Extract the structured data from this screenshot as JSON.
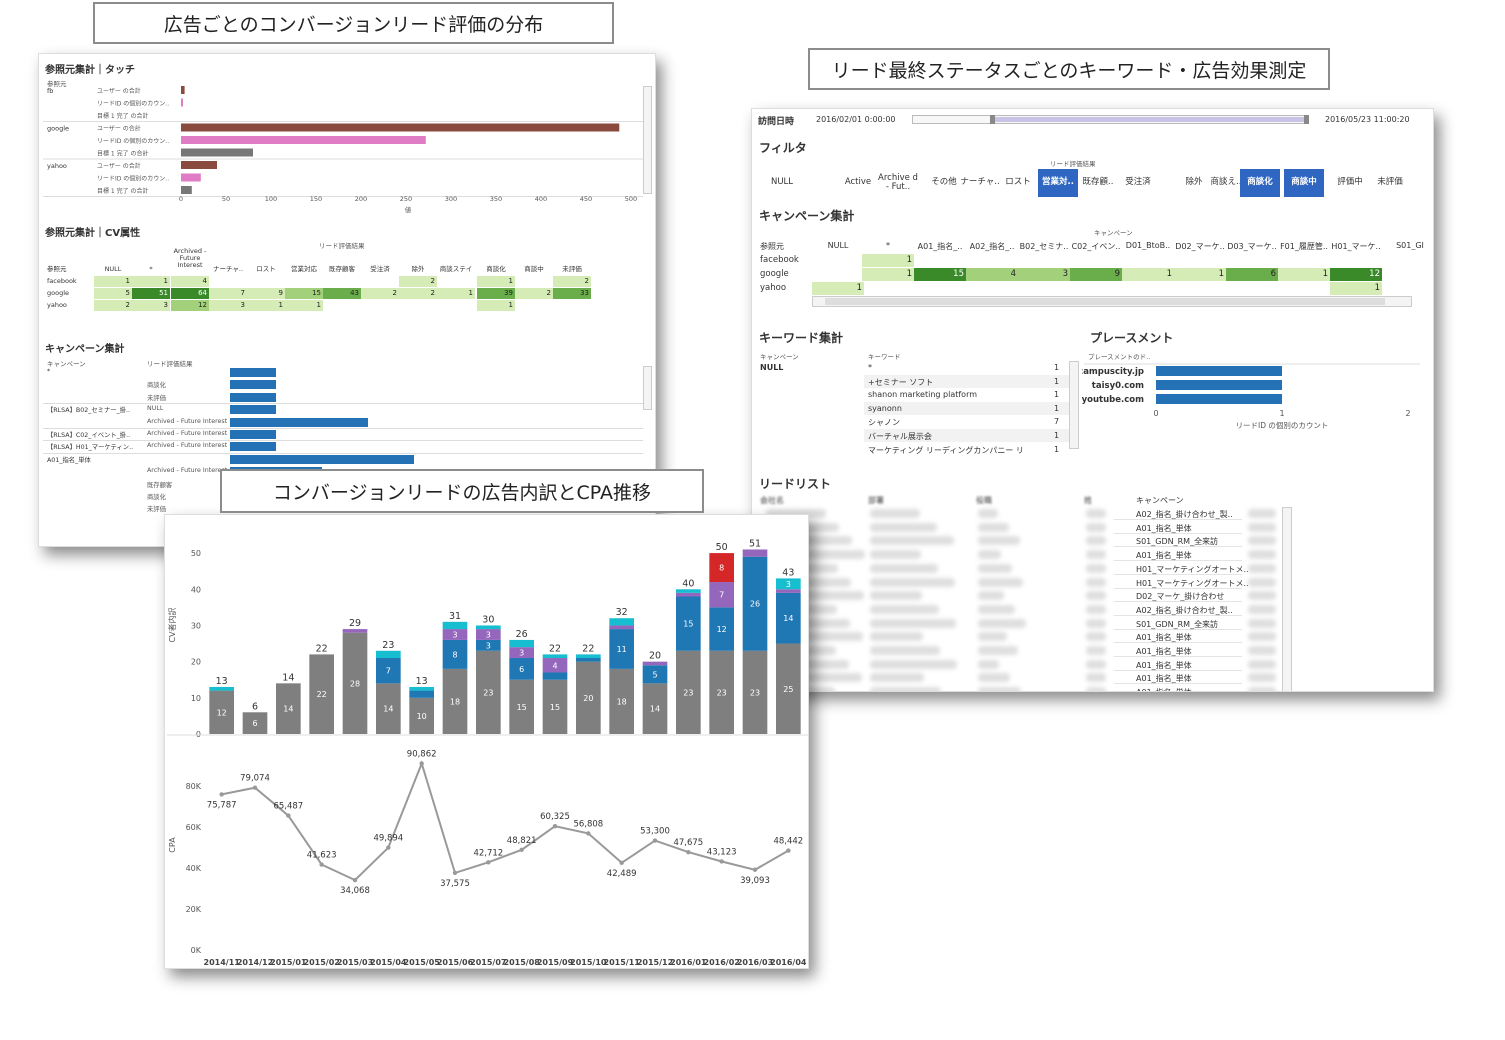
{
  "captions": {
    "dist": "広告ごとのコンバージョンリード評価の分布",
    "keyword": "リード最終ステータスごとのキーワード・広告効果測定",
    "cpa": "コンバージョンリードの広告内訳とCPA推移"
  },
  "left_panel": {
    "touch_title": "参照元集計｜タッチ",
    "ref_header": "参照元",
    "groups": [
      {
        "source": "fb",
        "rows": [
          {
            "label": "ユーザー の合計",
            "value": 4,
            "color": "#8b4a3e"
          },
          {
            "label": "リードID の個別のカウン..",
            "value": 2,
            "color": "#e07bc6"
          },
          {
            "label": "目標 1 完了 の合計",
            "value": 0,
            "color": "#777777"
          }
        ]
      },
      {
        "source": "google",
        "rows": [
          {
            "label": "ユーザー の合計",
            "value": 487,
            "color": "#8b4a3e"
          },
          {
            "label": "リードID の個別のカウン..",
            "value": 272,
            "color": "#e07bc6"
          },
          {
            "label": "目標 1 完了 の合計",
            "value": 80,
            "color": "#777777"
          }
        ]
      },
      {
        "source": "yahoo",
        "rows": [
          {
            "label": "ユーザー の合計",
            "value": 40,
            "color": "#8b4a3e"
          },
          {
            "label": "リードID の個別のカウン..",
            "value": 22,
            "color": "#e07bc6"
          },
          {
            "label": "目標 1 完了 の合計",
            "value": 12,
            "color": "#777777"
          }
        ]
      }
    ],
    "axis_ticks": [
      "0",
      "50",
      "100",
      "150",
      "200",
      "250",
      "300",
      "350",
      "400",
      "450",
      "500"
    ],
    "axis_label": "値",
    "cv_title": "参照元集計｜CV属性",
    "cv_header_caption": "リード評価結果",
    "cv_columns": [
      "参照元",
      "NULL",
      "*",
      "Archived - Future Interest",
      "ナーチャ..",
      "ロスト",
      "営業対応",
      "既存顧客",
      "受注済",
      "除外",
      "商談ステイ",
      "商談化",
      "商談中",
      "未評価"
    ],
    "cv_rows": [
      {
        "source": "facebook",
        "cells": [
          "1",
          "1",
          "4",
          "",
          "",
          "",
          "",
          "",
          "2",
          "",
          "1",
          "",
          "2"
        ]
      },
      {
        "source": "google",
        "cells": [
          "5",
          "51",
          "64",
          "7",
          "9",
          "15",
          "43",
          "2",
          "2",
          "1",
          "39",
          "2",
          "33"
        ]
      },
      {
        "source": "yahoo",
        "cells": [
          "2",
          "3",
          "12",
          "3",
          "1",
          "1",
          "",
          "",
          "",
          "",
          "1",
          "",
          ""
        ]
      }
    ],
    "campaign_title": "キャンペーン集計",
    "campaign_headers": [
      "キャンペーン",
      "リード評価結果"
    ],
    "campaign_rows": [
      {
        "campaign": "*",
        "status": ""
      },
      {
        "campaign": "",
        "status": "商談化"
      },
      {
        "campaign": "",
        "status": "未評価"
      },
      {
        "campaign": "【RLSA】B02_セミナー_掛..",
        "status": "NULL"
      },
      {
        "campaign": "",
        "status": "Archived - Future Interest"
      },
      {
        "campaign": "【RLSA】C02_イベント_掛..",
        "status": "Archived - Future Interest"
      },
      {
        "campaign": "【RLSA】H01_マーケティン..",
        "status": "Archived - Future Interest"
      },
      {
        "campaign": "A01_指名_単体",
        "status": ""
      },
      {
        "campaign": "",
        "status": "Archived - Future Interest"
      },
      {
        "campaign": "",
        "status": "既存顧客"
      },
      {
        "campaign": "",
        "status": "商談化"
      },
      {
        "campaign": "",
        "status": "未評価"
      }
    ],
    "campaign_values": [
      1,
      1,
      1,
      1,
      3,
      1,
      1,
      4,
      2,
      1,
      1,
      1
    ]
  },
  "right_panel": {
    "visit_label": "訪問日時",
    "date_start": "2016/02/01 0:00:00",
    "date_end": "2016/05/23 11:00:20",
    "filter_title": "フィルタ",
    "filter_caption": "リード評価結果",
    "filters": [
      {
        "label": "NULL",
        "selected": false
      },
      {
        "label": "Active",
        "selected": false
      },
      {
        "label": "Archive d - Fut..",
        "selected": false
      },
      {
        "label": "その他",
        "selected": false
      },
      {
        "label": "ナーチャ..",
        "selected": false
      },
      {
        "label": "ロスト",
        "selected": false
      },
      {
        "label": "営業対..",
        "selected": true
      },
      {
        "label": "既存顧..",
        "selected": false
      },
      {
        "label": "受注済",
        "selected": false
      },
      {
        "label": "除外",
        "selected": false
      },
      {
        "label": "商談え..",
        "selected": false
      },
      {
        "label": "商談化",
        "selected": true
      },
      {
        "label": "商談中",
        "selected": true
      },
      {
        "label": "評価中",
        "selected": false
      },
      {
        "label": "未評価",
        "selected": false
      }
    ],
    "campaign_title": "キャンペーン集計",
    "campaign_caption": "キャンペーン",
    "campaign_columns": [
      "参照元",
      "NULL",
      "*",
      "A01_指名_..",
      "A02_指名_..",
      "B02_セミナ..",
      "C02_イベン..",
      "D01_BtoB..",
      "D02_マーケ..",
      "D03_マーケ..",
      "F01_履歴管..",
      "H01_マーケ..",
      "S01_GI"
    ],
    "campaign_rows": [
      {
        "source": "facebook",
        "cells": [
          "",
          "1",
          "",
          "",
          "",
          "",
          "",
          "",
          "",
          "",
          "",
          ""
        ]
      },
      {
        "source": "google",
        "cells": [
          "",
          "1",
          "15",
          "4",
          "3",
          "9",
          "1",
          "1",
          "6",
          "1",
          "12",
          ""
        ]
      },
      {
        "source": "yahoo",
        "cells": [
          "1",
          "",
          "",
          "",
          "",
          "",
          "",
          "",
          "",
          "",
          "1",
          ""
        ]
      }
    ],
    "keyword_title": "キーワード集計",
    "keyword_headers": [
      "キャンペーン",
      "キーワード"
    ],
    "keyword_campaign": "NULL",
    "keywords": [
      {
        "kw": "*",
        "v": "1"
      },
      {
        "kw": "+セミナー ソフト",
        "v": "1"
      },
      {
        "kw": "shanon marketing platform",
        "v": "1"
      },
      {
        "kw": "syanonn",
        "v": "1"
      },
      {
        "kw": "シャノン",
        "v": "7"
      },
      {
        "kw": "バーチャル展示会",
        "v": "1"
      },
      {
        "kw": "マーケティング リーディングカンパニー リード管理",
        "v": "1"
      }
    ],
    "placement_title": "プレースメント",
    "placement_header": "プレースメントのド..",
    "placements": [
      {
        "name": "campuscity.jp",
        "value": 1
      },
      {
        "name": "taisy0.com",
        "value": 1
      },
      {
        "name": "youtube.com",
        "value": 1
      }
    ],
    "placement_ticks": [
      "0",
      "1",
      "2"
    ],
    "placement_axis": "リードID の個別のカウント",
    "leadlist_title": "リードリスト",
    "leadlist_headers": [
      "会社名",
      "部署",
      "役職",
      "姓",
      "キャンペーン"
    ],
    "leadlist_campaigns": [
      "A02_指名_掛け合わせ_製..",
      "A01_指名_単体",
      "S01_GDN_RM_全来訪",
      "A01_指名_単体",
      "H01_マーケティングオートメ..",
      "H01_マーケティングオートメ..",
      "D02_マーケ_掛け合わせ",
      "A02_指名_掛け合わせ_製..",
      "S01_GDN_RM_全来訪",
      "A01_指名_単体",
      "A01_指名_単体",
      "A01_指名_単体",
      "A01_指名_単体",
      "A01_指名_単体"
    ]
  },
  "chart_data": {
    "type": "bar",
    "categories": [
      "2014/11",
      "2014/12",
      "2015/01",
      "2015/02",
      "2015/03",
      "2015/04",
      "2015/05",
      "2015/06",
      "2015/07",
      "2015/08",
      "2015/09",
      "2015/10",
      "2015/11",
      "2015/12",
      "2016/01",
      "2016/02",
      "2016/03",
      "2016/04"
    ],
    "totals": [
      13,
      6,
      14,
      22,
      29,
      23,
      13,
      31,
      30,
      26,
      22,
      22,
      32,
      20,
      40,
      50,
      51,
      43
    ],
    "series": [
      {
        "color": "#7f7f7f",
        "values": [
          12,
          6,
          14,
          22,
          28,
          14,
          10,
          18,
          23,
          15,
          15,
          20,
          18,
          14,
          23,
          23,
          23,
          25
        ],
        "labels": [
          "12",
          "6",
          "14",
          "22",
          "28",
          "14",
          "10",
          "18",
          "23",
          "15",
          "15",
          "20",
          "18",
          "14",
          "23",
          "23",
          "23",
          "25"
        ]
      },
      {
        "color": "#1f77b4",
        "values": [
          0,
          0,
          0,
          0,
          0,
          7,
          2,
          8,
          3,
          6,
          2,
          1,
          11,
          5,
          15,
          12,
          26,
          14
        ],
        "labels": [
          "",
          "",
          "",
          "",
          "",
          "7",
          "",
          "8",
          "3",
          "6",
          "",
          "",
          "11",
          "5",
          "15",
          "12",
          "26",
          "14"
        ]
      },
      {
        "color": "#9467bd",
        "values": [
          0,
          0,
          0,
          0,
          1,
          0,
          0,
          3,
          3,
          3,
          4,
          0,
          1,
          1,
          1,
          7,
          2,
          1
        ],
        "labels": [
          "",
          "",
          "",
          "",
          "",
          "",
          "",
          "3",
          "3",
          "3",
          "4",
          "",
          "",
          "",
          "",
          "7",
          "",
          ""
        ]
      },
      {
        "color": "#d62728",
        "values": [
          0,
          0,
          0,
          0,
          0,
          0,
          0,
          0,
          0,
          0,
          0,
          0,
          0,
          0,
          0,
          8,
          0,
          0
        ],
        "labels": [
          "",
          "",
          "",
          "",
          "",
          "",
          "",
          "",
          "",
          "",
          "",
          "",
          "",
          "",
          "",
          "8",
          "",
          ""
        ]
      },
      {
        "color": "#17becf",
        "values": [
          1,
          0,
          0,
          0,
          0,
          2,
          1,
          2,
          1,
          2,
          1,
          1,
          2,
          0,
          1,
          0,
          0,
          3
        ],
        "labels": [
          "",
          "",
          "",
          "",
          "",
          "",
          "",
          "",
          "",
          "",
          "",
          "",
          "",
          "",
          "",
          "",
          "",
          "3"
        ]
      }
    ],
    "ylabel": "CV者内訳",
    "ylim": [
      0,
      55
    ],
    "yticks": [
      "0",
      "10",
      "20",
      "30",
      "40",
      "50"
    ],
    "cpa": {
      "type": "line",
      "values": [
        75787,
        79074,
        65487,
        41623,
        34068,
        49894,
        90862,
        37575,
        42712,
        48821,
        60325,
        56808,
        42489,
        53300,
        47675,
        43123,
        39093,
        48442
      ],
      "labels": [
        "75,787",
        "79,074",
        "65,487",
        "41,623",
        "34,068",
        "49,894",
        "90,862",
        "37,575",
        "42,712",
        "48,821",
        "60,325",
        "56,808",
        "42,489",
        "53,300",
        "47,675",
        "43,123",
        "39,093",
        "48,442"
      ],
      "ylabel": "CPA",
      "ylim": [
        0,
        95000
      ],
      "yticks": [
        "0K",
        "20K",
        "40K",
        "60K",
        "80K"
      ],
      "color": "#999999"
    }
  }
}
